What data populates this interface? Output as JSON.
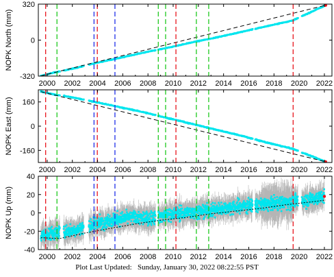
{
  "footer": {
    "label": "Plot Last Updated:",
    "date": "Sunday, January 30, 2022 08:22:55 PST"
  },
  "colors": {
    "data": "#00e5ee",
    "error_bar": "#a8a8a8",
    "model": "#000000",
    "red_lines": "#e8141c",
    "green_lines": "#1ec81e",
    "blue_lines": "#1e2ee8",
    "last_point": "#e8141c"
  },
  "chart_data": [
    {
      "type": "scatter",
      "panel": "north",
      "ylabel": "NOPK North (mm)",
      "xlim": [
        1999.3,
        2022.6
      ],
      "ylim": [
        -320,
        320
      ],
      "yticks": [
        -320,
        0,
        320
      ],
      "xticks": [
        2000,
        2002,
        2004,
        2006,
        2008,
        2010,
        2012,
        2014,
        2016,
        2018,
        2020,
        2022
      ],
      "series": [
        {
          "role": "data",
          "x": [
            1999.5,
            2000.5,
            2002.0,
            2003.8,
            2005.5,
            2007.5,
            2009.5,
            2011.5,
            2013.5,
            2015.5,
            2017.5,
            2019.5,
            2022.1
          ],
          "y": [
            -318,
            -290,
            -255,
            -205,
            -165,
            -115,
            -70,
            -20,
            25,
            75,
            125,
            175,
            310
          ]
        },
        {
          "role": "model",
          "x": [
            1999.5,
            2022.1
          ],
          "y": [
            -318,
            310
          ]
        }
      ]
    },
    {
      "type": "scatter",
      "panel": "east",
      "ylabel": "NOPK East (mm)",
      "xlim": [
        1999.3,
        2022.6
      ],
      "ylim": [
        -240,
        240
      ],
      "yticks": [
        -160,
        0,
        160
      ],
      "xticks": [
        2000,
        2002,
        2004,
        2006,
        2008,
        2010,
        2012,
        2014,
        2016,
        2018,
        2020,
        2022
      ],
      "series": [
        {
          "role": "data",
          "x": [
            1999.5,
            2000.5,
            2002.0,
            2003.8,
            2005.5,
            2007.5,
            2009.5,
            2011.5,
            2013.5,
            2015.5,
            2017.5,
            2019.5,
            2022.1
          ],
          "y": [
            228,
            210,
            190,
            160,
            130,
            95,
            55,
            15,
            -25,
            -65,
            -110,
            -150,
            -235
          ]
        },
        {
          "role": "model",
          "x": [
            1999.5,
            2022.1
          ],
          "y": [
            228,
            -235
          ]
        }
      ]
    },
    {
      "type": "scatter",
      "panel": "up",
      "ylabel": "NOPK Up (mm)",
      "xlim": [
        1999.3,
        2022.6
      ],
      "ylim": [
        -40,
        40
      ],
      "yticks": [
        -40,
        -20,
        0,
        20,
        40
      ],
      "xticks": [
        2000,
        2002,
        2004,
        2006,
        2008,
        2010,
        2012,
        2014,
        2016,
        2018,
        2020,
        2022
      ],
      "series": [
        {
          "role": "data",
          "x": [
            1999.5,
            2000.5,
            2002.5,
            2003.8,
            2005.0,
            2006.5,
            2008.0,
            2009.5,
            2011.0,
            2012.5,
            2014.0,
            2016.0,
            2018.0,
            2019.5,
            2021.0,
            2022.0
          ],
          "y": [
            -25,
            -22,
            -18,
            -12,
            -8,
            -5,
            -6,
            -2,
            0,
            2,
            5,
            8,
            10,
            12,
            15,
            18
          ]
        },
        {
          "role": "model",
          "x": [
            1999.5,
            2001.0,
            2003.0,
            2005.0,
            2007.0,
            2009.0,
            2011.0,
            2013.0,
            2015.0,
            2017.0,
            2019.0,
            2021.0,
            2022.1
          ],
          "y": [
            -27,
            -28,
            -22,
            -17,
            -12,
            -8,
            -5,
            -1,
            2,
            5,
            9,
            12,
            14
          ]
        }
      ]
    }
  ],
  "event_lines": {
    "red": [
      1999.88,
      2003.98,
      2010.22,
      2019.52
    ],
    "green": [
      2000.78,
      2008.82,
      2009.4,
      2011.84,
      2012.82
    ],
    "blue": [
      2003.72,
      2005.38
    ]
  }
}
